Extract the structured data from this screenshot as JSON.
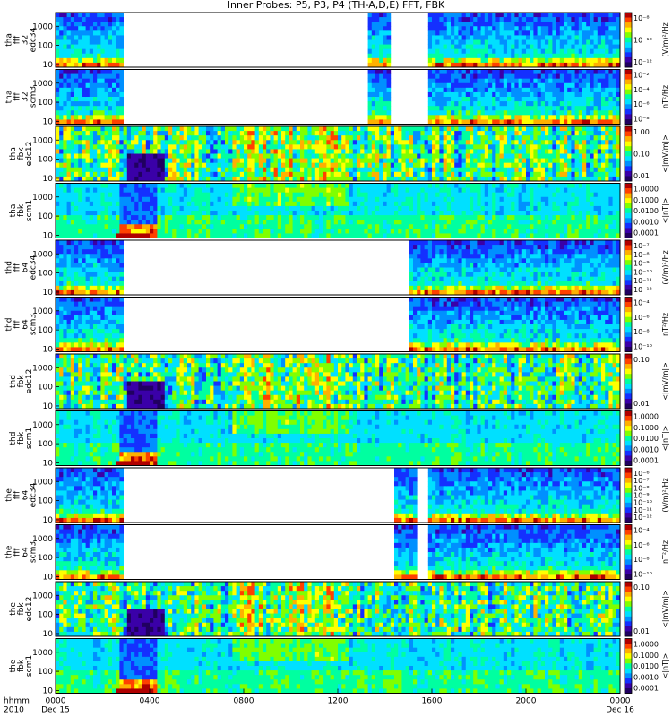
{
  "chart_data": {
    "type": "heatmap",
    "title": "Inner Probes: P5, P3, P4 (TH-A,D,E) FFT, FBK",
    "x_axis": {
      "header": [
        "hhmm",
        "2010"
      ],
      "ticks": [
        {
          "label": "0000",
          "sub": "Dec 15"
        },
        {
          "label": "0400",
          "sub": ""
        },
        {
          "label": "0800",
          "sub": ""
        },
        {
          "label": "1200",
          "sub": ""
        },
        {
          "label": "1600",
          "sub": ""
        },
        {
          "label": "2000",
          "sub": ""
        },
        {
          "label": "0000",
          "sub": "Dec 16"
        }
      ],
      "range_hours": [
        0,
        24
      ]
    },
    "panels": [
      {
        "probe": "tha",
        "ylabel": [
          "tha",
          "fff",
          "32",
          "edc34"
        ],
        "kind": "fff_e",
        "yticks": [
          "1000",
          "100",
          "10"
        ],
        "colorbar": {
          "ticks": [
            "10⁻⁸",
            "10⁻¹⁰",
            "10⁻¹²"
          ],
          "unit": "(V/m)²/Hz"
        },
        "coverage_hours": [
          [
            0.0,
            2.85
          ],
          [
            13.35,
            14.25
          ],
          [
            15.9,
            24.0
          ]
        ]
      },
      {
        "probe": "tha",
        "ylabel": [
          "tha",
          "fff",
          "32",
          "scm3"
        ],
        "kind": "fff_b",
        "yticks": [
          "1000",
          "100",
          "10"
        ],
        "colorbar": {
          "ticks": [
            "10⁻²",
            "10⁻⁴",
            "10⁻⁶",
            "10⁻⁸"
          ],
          "unit": "nT²/Hz"
        },
        "coverage_hours": [
          [
            0.0,
            2.85
          ],
          [
            13.35,
            14.25
          ],
          [
            15.9,
            24.0
          ]
        ]
      },
      {
        "probe": "tha",
        "ylabel": [
          "tha",
          "fbk",
          "edc12"
        ],
        "kind": "fbk_e",
        "yticks": [
          "1000",
          "100",
          "10"
        ],
        "colorbar": {
          "ticks": [
            "1.00",
            "0.10",
            "0.01"
          ],
          "unit": "<|mV/m|>"
        },
        "coverage_hours": [
          [
            0.0,
            24.0
          ]
        ]
      },
      {
        "probe": "tha",
        "ylabel": [
          "tha",
          "fbk",
          "scm1"
        ],
        "kind": "fbk_b",
        "yticks": [
          "1000",
          "100",
          "10"
        ],
        "colorbar": {
          "ticks": [
            "1.0000",
            "0.1000",
            "0.0100",
            "0.0010",
            "0.0001"
          ],
          "unit": "<|nT|>"
        },
        "coverage_hours": [
          [
            0.0,
            24.0
          ]
        ]
      },
      {
        "probe": "thd",
        "ylabel": [
          "thd",
          "fff",
          "64",
          "edc34"
        ],
        "kind": "fff_e",
        "yticks": [
          "1000",
          "100",
          "10"
        ],
        "colorbar": {
          "ticks": [
            "10⁻⁷",
            "10⁻⁸",
            "10⁻⁹",
            "10⁻¹⁰",
            "10⁻¹¹",
            "10⁻¹²"
          ],
          "unit": "(V/m)²/Hz"
        },
        "coverage_hours": [
          [
            0.0,
            2.85
          ],
          [
            15.0,
            24.0
          ]
        ]
      },
      {
        "probe": "thd",
        "ylabel": [
          "thd",
          "fff",
          "64",
          "scm3"
        ],
        "kind": "fff_b",
        "yticks": [
          "1000",
          "100",
          "10"
        ],
        "colorbar": {
          "ticks": [
            "10⁻⁴",
            "10⁻⁶",
            "10⁻⁸",
            "10⁻¹⁰"
          ],
          "unit": "nT²/Hz"
        },
        "coverage_hours": [
          [
            0.0,
            2.85
          ],
          [
            15.0,
            24.0
          ]
        ]
      },
      {
        "probe": "thd",
        "ylabel": [
          "thd",
          "fbk",
          "edc12"
        ],
        "kind": "fbk_e",
        "yticks": [
          "1000",
          "100",
          "10"
        ],
        "colorbar": {
          "ticks": [
            "0.10",
            "0.01"
          ],
          "unit": "<|mV/m|>"
        },
        "coverage_hours": [
          [
            0.0,
            24.0
          ]
        ]
      },
      {
        "probe": "thd",
        "ylabel": [
          "thd",
          "fbk",
          "scm1"
        ],
        "kind": "fbk_b",
        "yticks": [
          "1000",
          "100",
          "10"
        ],
        "colorbar": {
          "ticks": [
            "1.0000",
            "0.1000",
            "0.0100",
            "0.0010",
            "0.0001"
          ],
          "unit": "<|nT|>"
        },
        "coverage_hours": [
          [
            0.0,
            24.0
          ]
        ]
      },
      {
        "probe": "the",
        "ylabel": [
          "the",
          "fff",
          "64",
          "edc34"
        ],
        "kind": "fff_e",
        "yticks": [
          "1000",
          "100",
          "10"
        ],
        "colorbar": {
          "ticks": [
            "10⁻⁶",
            "10⁻⁷",
            "10⁻⁸",
            "10⁻⁹",
            "10⁻¹⁰",
            "10⁻¹¹",
            "10⁻¹²"
          ],
          "unit": "(V/m)²/Hz"
        },
        "coverage_hours": [
          [
            0.0,
            2.85
          ],
          [
            14.4,
            15.3
          ],
          [
            15.9,
            24.0
          ]
        ]
      },
      {
        "probe": "the",
        "ylabel": [
          "the",
          "fff",
          "64",
          "scm3"
        ],
        "kind": "fff_b",
        "yticks": [
          "1000",
          "100",
          "10"
        ],
        "colorbar": {
          "ticks": [
            "10⁻⁴",
            "10⁻⁶",
            "10⁻⁸",
            "10⁻¹⁰"
          ],
          "unit": "nT²/Hz"
        },
        "coverage_hours": [
          [
            0.0,
            2.85
          ],
          [
            14.4,
            15.3
          ],
          [
            15.9,
            24.0
          ]
        ]
      },
      {
        "probe": "the",
        "ylabel": [
          "the",
          "fbk",
          "edc12"
        ],
        "kind": "fbk_e",
        "yticks": [
          "1000",
          "100",
          "10"
        ],
        "colorbar": {
          "ticks": [
            "0.10",
            "0.01"
          ],
          "unit": "<|mV/m|>"
        },
        "coverage_hours": [
          [
            0.0,
            24.0
          ]
        ]
      },
      {
        "probe": "the",
        "ylabel": [
          "the",
          "fbk",
          "scm1"
        ],
        "kind": "fbk_b",
        "yticks": [
          "1000",
          "100",
          "10"
        ],
        "colorbar": {
          "ticks": [
            "1.0000",
            "0.1000",
            "0.0100",
            "0.0010",
            "0.0001"
          ],
          "unit": "<|nT|>"
        },
        "coverage_hours": [
          [
            0.0,
            24.0
          ]
        ]
      }
    ],
    "colormap": [
      "#200060",
      "#3a00a8",
      "#1430ff",
      "#0090ff",
      "#00e0ff",
      "#00ffa0",
      "#80ff00",
      "#ffff00",
      "#ffb000",
      "#ff4000",
      "#b00000"
    ]
  }
}
